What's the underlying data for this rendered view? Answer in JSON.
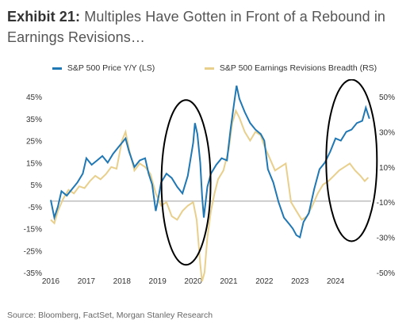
{
  "title": {
    "exhibit": "Exhibit 21:",
    "text": "Multiples Have Gotten in Front of a Rebound in Earnings Revisions…"
  },
  "source": "Source: Bloomberg, FactSet, Morgan Stanley Research",
  "colors": {
    "price": "#1f77b4",
    "revisions": "#e8cf8c",
    "zero_line": "#9e9e9e",
    "ellipse": "#000000"
  },
  "chart_data": {
    "type": "line",
    "x_ticks": [
      "2016",
      "2017",
      "2018",
      "2019",
      "2020",
      "2021",
      "2022",
      "2023",
      "2024"
    ],
    "y_left_ticks": [
      "45%",
      "35%",
      "25%",
      "15%",
      "5%",
      "-5%",
      "-15%",
      "-25%",
      "-35%"
    ],
    "y_right_ticks": [
      "50%",
      "30%",
      "10%",
      "-10%",
      "-30%",
      "-50%"
    ],
    "y_left_range": [
      -35,
      45
    ],
    "y_right_range": [
      -50,
      50
    ],
    "x_range": [
      2016.0,
      2025.0
    ],
    "legend_position": "top",
    "series": [
      {
        "name": "S&P 500 Price Y/Y (LS)",
        "axis": "left",
        "x": [
          2016.0,
          2016.1,
          2016.2,
          2016.3,
          2016.45,
          2016.6,
          2016.75,
          2016.9,
          2017.0,
          2017.15,
          2017.3,
          2017.45,
          2017.6,
          2017.75,
          2017.9,
          2018.0,
          2018.1,
          2018.2,
          2018.35,
          2018.5,
          2018.65,
          2018.75,
          2018.85,
          2018.95,
          2019.0,
          2019.1,
          2019.25,
          2019.4,
          2019.55,
          2019.7,
          2019.85,
          2020.0,
          2020.05,
          2020.12,
          2020.2,
          2020.25,
          2020.3,
          2020.4,
          2020.5,
          2020.65,
          2020.8,
          2020.95,
          2021.05,
          2021.15,
          2021.22,
          2021.3,
          2021.45,
          2021.6,
          2021.75,
          2021.9,
          2022.0,
          2022.1,
          2022.25,
          2022.4,
          2022.55,
          2022.7,
          2022.8,
          2022.9,
          2023.0,
          2023.1,
          2023.25,
          2023.4,
          2023.55,
          2023.7,
          2023.85,
          2024.0,
          2024.15,
          2024.3,
          2024.45,
          2024.6,
          2024.75,
          2024.85,
          2024.95
        ],
        "y": [
          -2,
          -10,
          -5,
          2,
          0,
          3,
          6,
          10,
          17,
          14,
          16,
          18,
          15,
          19,
          22,
          24,
          26,
          20,
          13,
          16,
          17,
          10,
          5,
          -7,
          -3,
          6,
          10,
          8,
          4,
          1,
          9,
          24,
          33,
          28,
          15,
          0,
          -10,
          4,
          10,
          14,
          17,
          16,
          30,
          42,
          50,
          44,
          38,
          33,
          30,
          28,
          25,
          12,
          6,
          -3,
          -10,
          -13,
          -15,
          -18,
          -19,
          -12,
          -8,
          3,
          12,
          15,
          20,
          26,
          25,
          29,
          30,
          33,
          34,
          40,
          35
        ]
      },
      {
        "name": "S&P 500 Earnings Revisions Breadth (RS)",
        "axis": "right",
        "x": [
          2016.0,
          2016.1,
          2016.2,
          2016.35,
          2016.5,
          2016.65,
          2016.8,
          2016.95,
          2017.1,
          2017.25,
          2017.4,
          2017.55,
          2017.7,
          2017.85,
          2018.0,
          2018.1,
          2018.2,
          2018.35,
          2018.5,
          2018.65,
          2018.8,
          2018.95,
          2019.1,
          2019.25,
          2019.4,
          2019.55,
          2019.7,
          2019.85,
          2020.0,
          2020.1,
          2020.2,
          2020.25,
          2020.32,
          2020.4,
          2020.5,
          2020.6,
          2020.7,
          2020.85,
          2021.0,
          2021.1,
          2021.2,
          2021.3,
          2021.45,
          2021.6,
          2021.75,
          2021.9,
          2022.0,
          2022.15,
          2022.3,
          2022.45,
          2022.6,
          2022.75,
          2022.9,
          2023.05,
          2023.2,
          2023.35,
          2023.5,
          2023.65,
          2023.8,
          2023.95,
          2024.1,
          2024.25,
          2024.4,
          2024.55,
          2024.7,
          2024.82,
          2024.92
        ],
        "y": [
          -20,
          -22,
          -15,
          -8,
          -3,
          -5,
          -1,
          -2,
          2,
          5,
          3,
          6,
          10,
          9,
          25,
          30,
          20,
          8,
          12,
          10,
          6,
          -5,
          -12,
          -10,
          -18,
          -20,
          -15,
          -12,
          -10,
          -20,
          -45,
          -55,
          -50,
          -30,
          -15,
          -5,
          3,
          8,
          20,
          35,
          42,
          38,
          30,
          25,
          30,
          28,
          22,
          15,
          8,
          10,
          12,
          -10,
          -15,
          -20,
          -18,
          -12,
          -5,
          0,
          2,
          5,
          8,
          10,
          12,
          8,
          5,
          2,
          4
        ]
      }
    ],
    "annotations": [
      "ellipse around 2019-2020",
      "ellipse around 2024"
    ]
  }
}
